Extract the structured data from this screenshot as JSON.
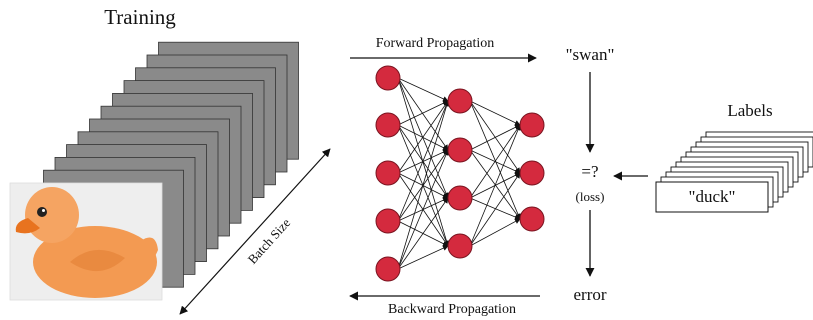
{
  "title": "Training",
  "batch_label": "Batch Size",
  "forward_label": "Forward Propagation",
  "backward_label": "Backward Propagation",
  "prediction": "\"swan\"",
  "comparison": "=?",
  "loss_label": "(loss)",
  "error_label": "error",
  "labels_title": "Labels",
  "label_example": "\"duck\""
}
